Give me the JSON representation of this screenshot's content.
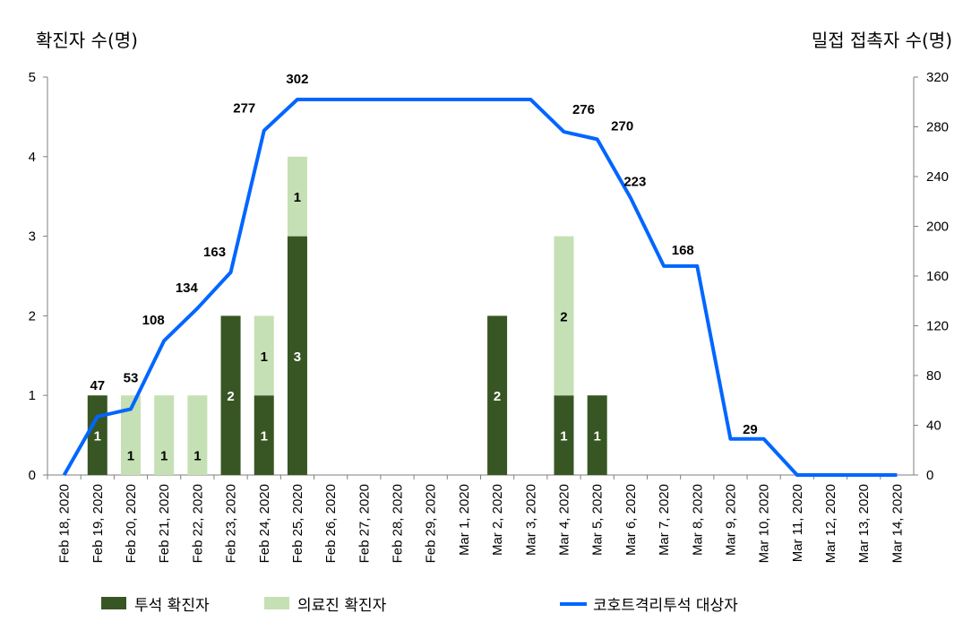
{
  "chart_data": {
    "type": "bar+line",
    "ylabel_left": "확진자 수(명)",
    "ylabel_right": "밀접 접촉자 수(명)",
    "ylim_left": [
      0,
      5
    ],
    "yticks_left": [
      "0",
      "1",
      "2",
      "3",
      "4",
      "5"
    ],
    "ylim_right": [
      0,
      320
    ],
    "yticks_right": [
      "0",
      "40",
      "80",
      "120",
      "160",
      "200",
      "240",
      "280",
      "320"
    ],
    "categories": [
      "Feb 18, 2020",
      "Feb 19, 2020",
      "Feb 20, 2020",
      "Feb 21, 2020",
      "Feb 22, 2020",
      "Feb 23, 2020",
      "Feb 24, 2020",
      "Feb 25, 2020",
      "Feb 26, 2020",
      "Feb 27, 2020",
      "Feb 28, 2020",
      "Feb 29, 2020",
      "Mar 1, 2020",
      "Mar 2, 2020",
      "Mar 3, 2020",
      "Mar 4, 2020",
      "Mar 5, 2020",
      "Mar 6, 2020",
      "Mar 7, 2020",
      "Mar 8, 2020",
      "Mar 9, 2020",
      "Mar 10, 2020",
      "Mar 11, 2020",
      "Mar 12, 2020",
      "Mar 13, 2020",
      "Mar 14, 2020"
    ],
    "series": [
      {
        "name": "투석 확진자",
        "kind": "bar",
        "axis": "left",
        "color": "#375623",
        "values": [
          0,
          1,
          0,
          0,
          0,
          2,
          1,
          3,
          0,
          0,
          0,
          0,
          0,
          2,
          0,
          1,
          1,
          0,
          0,
          0,
          0,
          0,
          0,
          0,
          0,
          0
        ]
      },
      {
        "name": "의료진 확진자",
        "kind": "bar",
        "axis": "left",
        "color": "#c5e0b4",
        "values": [
          0,
          0,
          1,
          1,
          1,
          0,
          1,
          1,
          0,
          0,
          0,
          0,
          0,
          0,
          0,
          2,
          0,
          0,
          0,
          0,
          0,
          0,
          0,
          0,
          0,
          0
        ]
      },
      {
        "name": "코호트격리투석 대상자",
        "kind": "line",
        "axis": "right",
        "color": "#0066ff",
        "values": [
          0,
          47,
          53,
          108,
          134,
          163,
          277,
          302,
          302,
          302,
          302,
          302,
          302,
          302,
          302,
          276,
          270,
          223,
          168,
          168,
          29,
          29,
          0,
          0,
          0,
          0
        ]
      }
    ],
    "line_data_labels": [
      {
        "index": 1,
        "text": "47"
      },
      {
        "index": 2,
        "text": "53"
      },
      {
        "index": 3,
        "text": "108"
      },
      {
        "index": 4,
        "text": "134"
      },
      {
        "index": 5,
        "text": "163"
      },
      {
        "index": 6,
        "text": "277"
      },
      {
        "index": 7,
        "text": "302"
      },
      {
        "index": 15,
        "text": "276"
      },
      {
        "index": 16,
        "text": "270"
      },
      {
        "index": 17,
        "text": "223"
      },
      {
        "index": 19,
        "text": "168"
      },
      {
        "index": 20,
        "text": "29"
      }
    ],
    "legend_position": "bottom",
    "grid": false
  }
}
